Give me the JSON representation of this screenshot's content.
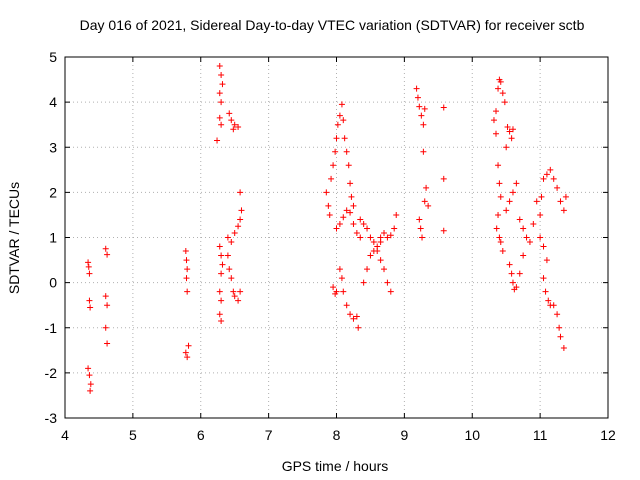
{
  "chart_data": {
    "type": "scatter",
    "title": "Day 016 of 2021, Sidereal Day-to-day VTEC variation (SDTVAR) for receiver sctb",
    "xlabel": "GPS time / hours",
    "ylabel": "SDTVAR / TECUs",
    "xlim": [
      4,
      12
    ],
    "ylim": [
      -3,
      5
    ],
    "xticks": [
      4,
      5,
      6,
      7,
      8,
      9,
      10,
      11,
      12
    ],
    "yticks": [
      -3,
      -2,
      -1,
      0,
      1,
      2,
      3,
      4,
      5
    ],
    "grid": true,
    "marker": "plus",
    "color": "#ff0000",
    "series": [
      {
        "name": "SDTVAR",
        "points": [
          [
            4.34,
            0.45
          ],
          [
            4.35,
            0.35
          ],
          [
            4.36,
            0.2
          ],
          [
            4.36,
            -0.4
          ],
          [
            4.37,
            -0.55
          ],
          [
            4.34,
            -1.9
          ],
          [
            4.36,
            -2.05
          ],
          [
            4.38,
            -2.25
          ],
          [
            4.37,
            -2.4
          ],
          [
            4.6,
            0.75
          ],
          [
            4.62,
            0.62
          ],
          [
            4.6,
            -0.3
          ],
          [
            4.62,
            -0.5
          ],
          [
            4.6,
            -1.0
          ],
          [
            4.62,
            -1.35
          ],
          [
            5.78,
            0.7
          ],
          [
            5.79,
            0.5
          ],
          [
            5.8,
            0.3
          ],
          [
            5.79,
            0.1
          ],
          [
            5.8,
            -0.2
          ],
          [
            5.78,
            -1.55
          ],
          [
            5.8,
            -1.65
          ],
          [
            5.82,
            -1.4
          ],
          [
            6.28,
            4.8
          ],
          [
            6.3,
            4.6
          ],
          [
            6.32,
            4.4
          ],
          [
            6.28,
            4.2
          ],
          [
            6.3,
            4.0
          ],
          [
            6.28,
            3.65
          ],
          [
            6.3,
            3.5
          ],
          [
            6.24,
            3.15
          ],
          [
            6.42,
            3.75
          ],
          [
            6.45,
            3.6
          ],
          [
            6.5,
            3.5
          ],
          [
            6.55,
            3.45
          ],
          [
            6.48,
            3.4
          ],
          [
            6.28,
            0.8
          ],
          [
            6.3,
            0.6
          ],
          [
            6.32,
            0.4
          ],
          [
            6.3,
            0.2
          ],
          [
            6.28,
            -0.2
          ],
          [
            6.3,
            -0.4
          ],
          [
            6.28,
            -0.7
          ],
          [
            6.3,
            -0.85
          ],
          [
            6.4,
            1.0
          ],
          [
            6.45,
            0.9
          ],
          [
            6.5,
            1.1
          ],
          [
            6.55,
            1.25
          ],
          [
            6.58,
            2.0
          ],
          [
            6.6,
            1.6
          ],
          [
            6.58,
            1.4
          ],
          [
            6.4,
            0.6
          ],
          [
            6.42,
            0.3
          ],
          [
            6.45,
            0.1
          ],
          [
            6.48,
            -0.2
          ],
          [
            6.5,
            -0.3
          ],
          [
            6.55,
            -0.4
          ],
          [
            6.58,
            -0.2
          ],
          [
            7.85,
            2.0
          ],
          [
            7.88,
            1.7
          ],
          [
            7.9,
            1.5
          ],
          [
            7.92,
            2.3
          ],
          [
            7.95,
            2.6
          ],
          [
            7.98,
            2.9
          ],
          [
            8.0,
            3.2
          ],
          [
            8.02,
            3.5
          ],
          [
            8.05,
            3.7
          ],
          [
            8.08,
            3.95
          ],
          [
            8.1,
            3.6
          ],
          [
            8.12,
            3.2
          ],
          [
            8.15,
            2.9
          ],
          [
            8.18,
            2.6
          ],
          [
            8.2,
            2.2
          ],
          [
            8.22,
            1.9
          ],
          [
            8.25,
            1.7
          ],
          [
            7.95,
            -0.1
          ],
          [
            7.98,
            -0.25
          ],
          [
            8.0,
            -0.2
          ],
          [
            8.05,
            0.3
          ],
          [
            8.08,
            0.1
          ],
          [
            8.1,
            -0.2
          ],
          [
            8.15,
            -0.5
          ],
          [
            8.2,
            -0.7
          ],
          [
            8.25,
            -0.8
          ],
          [
            8.3,
            -0.75
          ],
          [
            8.32,
            -1.0
          ],
          [
            8.0,
            1.2
          ],
          [
            8.05,
            1.3
          ],
          [
            8.1,
            1.45
          ],
          [
            8.15,
            1.6
          ],
          [
            8.2,
            1.55
          ],
          [
            8.25,
            1.3
          ],
          [
            8.3,
            1.1
          ],
          [
            8.35,
            1.0
          ],
          [
            8.35,
            1.4
          ],
          [
            8.4,
            1.3
          ],
          [
            8.45,
            1.2
          ],
          [
            8.5,
            1.0
          ],
          [
            8.55,
            0.9
          ],
          [
            8.6,
            0.7
          ],
          [
            8.65,
            0.5
          ],
          [
            8.7,
            0.3
          ],
          [
            8.75,
            0.0
          ],
          [
            8.8,
            -0.2
          ],
          [
            8.4,
            0.0
          ],
          [
            8.45,
            0.3
          ],
          [
            8.5,
            0.6
          ],
          [
            8.55,
            0.7
          ],
          [
            8.6,
            0.8
          ],
          [
            8.65,
            0.9
          ],
          [
            8.65,
            1.0
          ],
          [
            8.7,
            1.1
          ],
          [
            8.75,
            1.0
          ],
          [
            8.8,
            1.05
          ],
          [
            8.85,
            1.2
          ],
          [
            8.88,
            1.5
          ],
          [
            9.18,
            4.3
          ],
          [
            9.2,
            4.1
          ],
          [
            9.22,
            3.9
          ],
          [
            9.25,
            3.7
          ],
          [
            9.28,
            3.5
          ],
          [
            9.3,
            3.85
          ],
          [
            9.22,
            1.4
          ],
          [
            9.24,
            1.2
          ],
          [
            9.26,
            1.0
          ],
          [
            9.3,
            1.8
          ],
          [
            9.32,
            2.1
          ],
          [
            9.28,
            2.9
          ],
          [
            9.35,
            1.7
          ],
          [
            9.58,
            3.88
          ],
          [
            9.58,
            2.3
          ],
          [
            9.58,
            1.15
          ],
          [
            10.4,
            4.5
          ],
          [
            10.42,
            4.45
          ],
          [
            10.38,
            4.3
          ],
          [
            10.45,
            4.2
          ],
          [
            10.48,
            4.0
          ],
          [
            10.35,
            3.8
          ],
          [
            10.32,
            3.6
          ],
          [
            10.35,
            3.3
          ],
          [
            10.52,
            3.45
          ],
          [
            10.55,
            3.35
          ],
          [
            10.58,
            3.2
          ],
          [
            10.6,
            3.4
          ],
          [
            10.5,
            3.0
          ],
          [
            10.38,
            2.6
          ],
          [
            10.4,
            2.2
          ],
          [
            10.42,
            1.9
          ],
          [
            10.38,
            1.5
          ],
          [
            10.36,
            1.2
          ],
          [
            10.4,
            1.0
          ],
          [
            10.42,
            0.9
          ],
          [
            10.45,
            0.7
          ],
          [
            10.5,
            1.6
          ],
          [
            10.55,
            1.8
          ],
          [
            10.6,
            2.0
          ],
          [
            10.65,
            2.2
          ],
          [
            10.7,
            1.4
          ],
          [
            10.75,
            1.2
          ],
          [
            10.8,
            1.0
          ],
          [
            10.85,
            0.9
          ],
          [
            10.9,
            1.3
          ],
          [
            10.55,
            0.4
          ],
          [
            10.58,
            0.2
          ],
          [
            10.6,
            0.0
          ],
          [
            10.62,
            -0.15
          ],
          [
            10.65,
            -0.1
          ],
          [
            10.7,
            0.2
          ],
          [
            10.75,
            0.6
          ],
          [
            10.95,
            1.8
          ],
          [
            11.0,
            1.5
          ],
          [
            11.02,
            1.9
          ],
          [
            11.05,
            2.3
          ],
          [
            11.1,
            2.4
          ],
          [
            11.15,
            2.5
          ],
          [
            11.2,
            2.3
          ],
          [
            11.25,
            2.1
          ],
          [
            11.3,
            1.8
          ],
          [
            11.35,
            1.6
          ],
          [
            11.38,
            1.9
          ],
          [
            11.0,
            1.0
          ],
          [
            11.05,
            0.8
          ],
          [
            11.1,
            0.5
          ],
          [
            11.05,
            0.1
          ],
          [
            11.08,
            -0.2
          ],
          [
            11.12,
            -0.4
          ],
          [
            11.15,
            -0.5
          ],
          [
            11.2,
            -0.5
          ],
          [
            11.25,
            -0.7
          ],
          [
            11.28,
            -1.0
          ],
          [
            11.3,
            -1.2
          ],
          [
            11.35,
            -1.45
          ]
        ]
      }
    ]
  }
}
